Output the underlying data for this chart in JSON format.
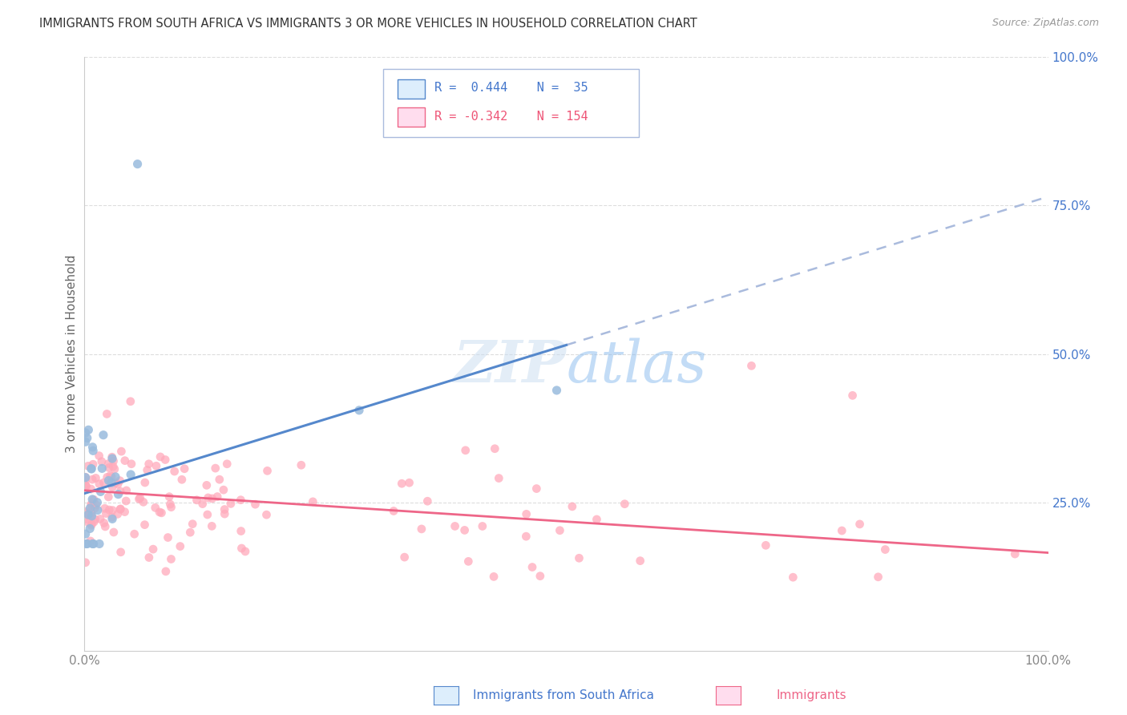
{
  "title": "IMMIGRANTS FROM SOUTH AFRICA VS IMMIGRANTS 3 OR MORE VEHICLES IN HOUSEHOLD CORRELATION CHART",
  "source": "Source: ZipAtlas.com",
  "ylabel": "3 or more Vehicles in Household",
  "legend_label1": "Immigrants from South Africa",
  "legend_label2": "Immigrants",
  "R1": 0.444,
  "N1": 35,
  "R2": -0.342,
  "N2": 154,
  "color_blue": "#99BBDD",
  "color_pink": "#FFAABB",
  "color_blue_line": "#5588CC",
  "color_pink_line": "#EE6688",
  "color_dashed": "#AABBDD",
  "watermark_color": "#C8DCF0",
  "watermark_alpha": 0.5,
  "legend_box_color": "#DDEEFC",
  "legend_border_color": "#AABBDD",
  "text_blue": "#4477CC",
  "text_pink": "#EE5577",
  "axis_label_color": "#888888",
  "ylabel_color": "#666666",
  "grid_color": "#DDDDDD",
  "spine_color": "#CCCCCC",
  "title_color": "#333333",
  "source_color": "#999999",
  "xlim": [
    0.0,
    1.0
  ],
  "ylim": [
    0.0,
    1.0
  ],
  "blue_line": {
    "x0": 0.0,
    "y0": 0.265,
    "x1": 0.5,
    "y1": 0.515,
    "x2": 1.0,
    "y2": 0.765
  },
  "pink_line": {
    "x0": 0.0,
    "y0": 0.27,
    "x1": 1.0,
    "y1": 0.165
  }
}
